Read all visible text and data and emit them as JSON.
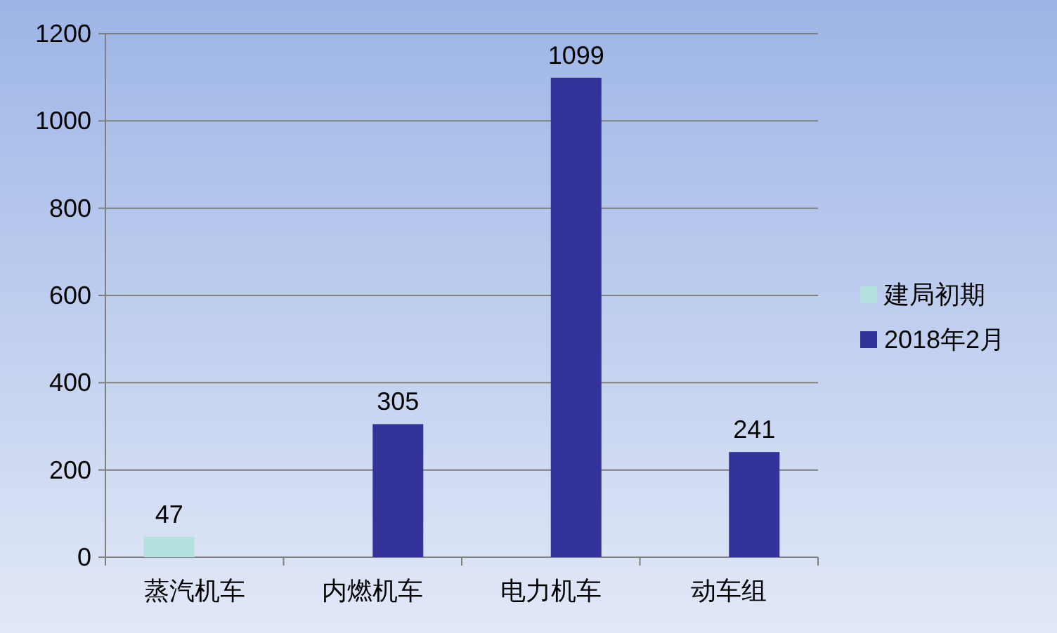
{
  "chart_data": {
    "type": "bar",
    "categories": [
      "蒸汽机车",
      "内燃机车",
      "电力机车",
      "动车组"
    ],
    "series": [
      {
        "name": "建局初期",
        "color": "#b4e0de",
        "values": [
          47,
          null,
          null,
          null
        ]
      },
      {
        "name": "2018年2月",
        "color": "#333399",
        "values": [
          null,
          305,
          1099,
          241
        ]
      }
    ],
    "ylim": [
      0,
      1200
    ],
    "yticks": [
      0,
      200,
      400,
      600,
      800,
      1000,
      1200
    ],
    "grid": "y",
    "legend": "right",
    "data_labels": true
  }
}
